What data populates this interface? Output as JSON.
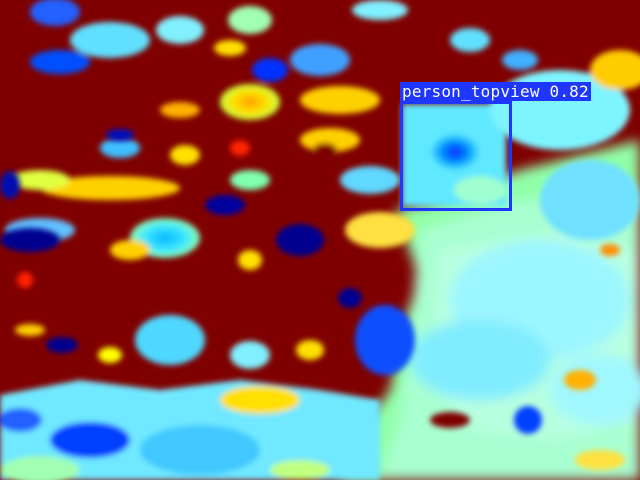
{
  "detection": {
    "label": "person_topview",
    "score": "0.82",
    "box_color": "#1f36ff",
    "text_color": "#ffffff"
  },
  "heatmap": {
    "colormap": "jet",
    "background_color": "#7f0000",
    "colors": [
      "#7f0000",
      "#ff0000",
      "#ff8c00",
      "#ffff00",
      "#80ff80",
      "#00ffff",
      "#00a0ff",
      "#0000ff",
      "#00008f"
    ]
  }
}
